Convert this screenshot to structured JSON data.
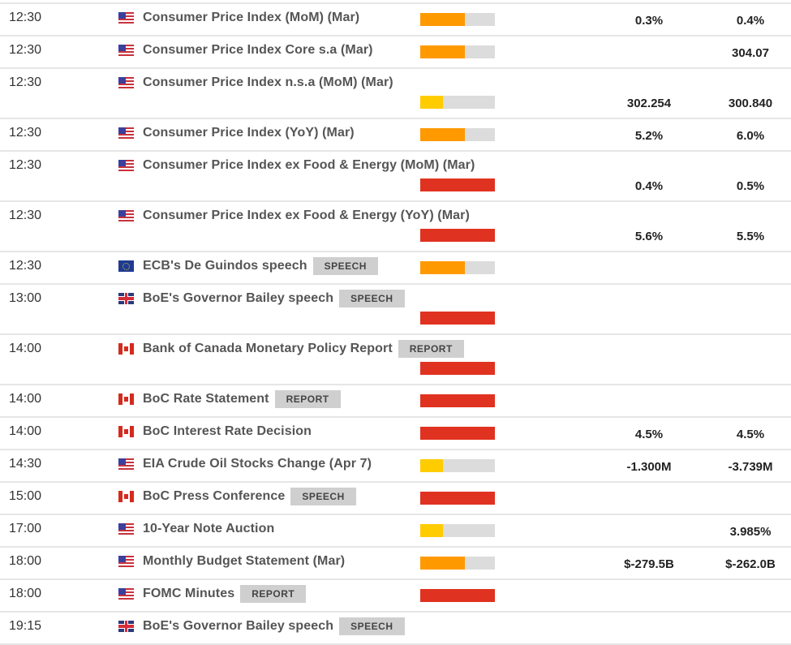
{
  "colors": {
    "impact_high": "#e03220",
    "impact_medium": "#ff9900",
    "impact_low": "#ffcc00",
    "impact_track": "#dcdcdc",
    "tag_bg": "#cfcfcf",
    "row_border": "#e6e6e6"
  },
  "events": [
    {
      "time": "12:30",
      "flag": "us-flag-icon",
      "name": "Consumer Price Index (MoM) (Mar)",
      "tag": "",
      "impact": "medium",
      "fill_pct": 60,
      "forecast": "0.3%",
      "previous": "0.4%",
      "tall": false
    },
    {
      "time": "12:30",
      "flag": "us-flag-icon",
      "name": "Consumer Price Index Core s.a (Mar)",
      "tag": "",
      "impact": "medium",
      "fill_pct": 60,
      "forecast": "",
      "previous": "304.07",
      "tall": false
    },
    {
      "time": "12:30",
      "flag": "us-flag-icon",
      "name": "Consumer Price Index n.s.a (MoM) (Mar)",
      "tag": "",
      "impact": "low",
      "fill_pct": 30,
      "forecast": "302.254",
      "previous": "300.840",
      "tall": true
    },
    {
      "time": "12:30",
      "flag": "us-flag-icon",
      "name": "Consumer Price Index (YoY) (Mar)",
      "tag": "",
      "impact": "medium",
      "fill_pct": 60,
      "forecast": "5.2%",
      "previous": "6.0%",
      "tall": false
    },
    {
      "time": "12:30",
      "flag": "us-flag-icon",
      "name": "Consumer Price Index ex Food & Energy (MoM) (Mar)",
      "tag": "",
      "impact": "high",
      "fill_pct": 100,
      "forecast": "0.4%",
      "previous": "0.5%",
      "tall": true
    },
    {
      "time": "12:30",
      "flag": "us-flag-icon",
      "name": "Consumer Price Index ex Food & Energy (YoY) (Mar)",
      "tag": "",
      "impact": "high",
      "fill_pct": 100,
      "forecast": "5.6%",
      "previous": "5.5%",
      "tall": true
    },
    {
      "time": "12:30",
      "flag": "eu-flag-icon",
      "name": "ECB's De Guindos speech",
      "tag": "SPEECH",
      "impact": "medium",
      "fill_pct": 60,
      "forecast": "",
      "previous": "",
      "tall": false
    },
    {
      "time": "13:00",
      "flag": "gb-flag-icon",
      "name": "BoE's Governor Bailey speech",
      "tag": "SPEECH",
      "impact": "high",
      "fill_pct": 100,
      "forecast": "",
      "previous": "",
      "tall": true
    },
    {
      "time": "14:00",
      "flag": "ca-flag-icon",
      "name": "Bank of Canada Monetary Policy Report",
      "tag": "REPORT",
      "impact": "high",
      "fill_pct": 100,
      "forecast": "",
      "previous": "",
      "tall": true
    },
    {
      "time": "14:00",
      "flag": "ca-flag-icon",
      "name": "BoC Rate Statement",
      "tag": "REPORT",
      "impact": "high",
      "fill_pct": 100,
      "forecast": "",
      "previous": "",
      "tall": false
    },
    {
      "time": "14:00",
      "flag": "ca-flag-icon",
      "name": "BoC Interest Rate Decision",
      "tag": "",
      "impact": "high",
      "fill_pct": 100,
      "forecast": "4.5%",
      "previous": "4.5%",
      "tall": false
    },
    {
      "time": "14:30",
      "flag": "us-flag-icon",
      "name": "EIA Crude Oil Stocks Change (Apr 7)",
      "tag": "",
      "impact": "low",
      "fill_pct": 30,
      "forecast": "-1.300M",
      "previous": "-3.739M",
      "tall": false
    },
    {
      "time": "15:00",
      "flag": "ca-flag-icon",
      "name": "BoC Press Conference",
      "tag": "SPEECH",
      "impact": "high",
      "fill_pct": 100,
      "forecast": "",
      "previous": "",
      "tall": false
    },
    {
      "time": "17:00",
      "flag": "us-flag-icon",
      "name": "10-Year Note Auction",
      "tag": "",
      "impact": "low",
      "fill_pct": 30,
      "forecast": "",
      "previous": "3.985%",
      "tall": false
    },
    {
      "time": "18:00",
      "flag": "us-flag-icon",
      "name": "Monthly Budget Statement (Mar)",
      "tag": "",
      "impact": "medium",
      "fill_pct": 60,
      "forecast": "$-279.5B",
      "previous": "$-262.0B",
      "tall": false
    },
    {
      "time": "18:00",
      "flag": "us-flag-icon",
      "name": "FOMC Minutes",
      "tag": "REPORT",
      "impact": "high",
      "fill_pct": 100,
      "forecast": "",
      "previous": "",
      "tall": false
    },
    {
      "time": "19:15",
      "flag": "gb-flag-icon",
      "name": "BoE's Governor Bailey speech",
      "tag": "SPEECH",
      "impact": null,
      "fill_pct": null,
      "forecast": "",
      "previous": "",
      "tall": false
    }
  ]
}
